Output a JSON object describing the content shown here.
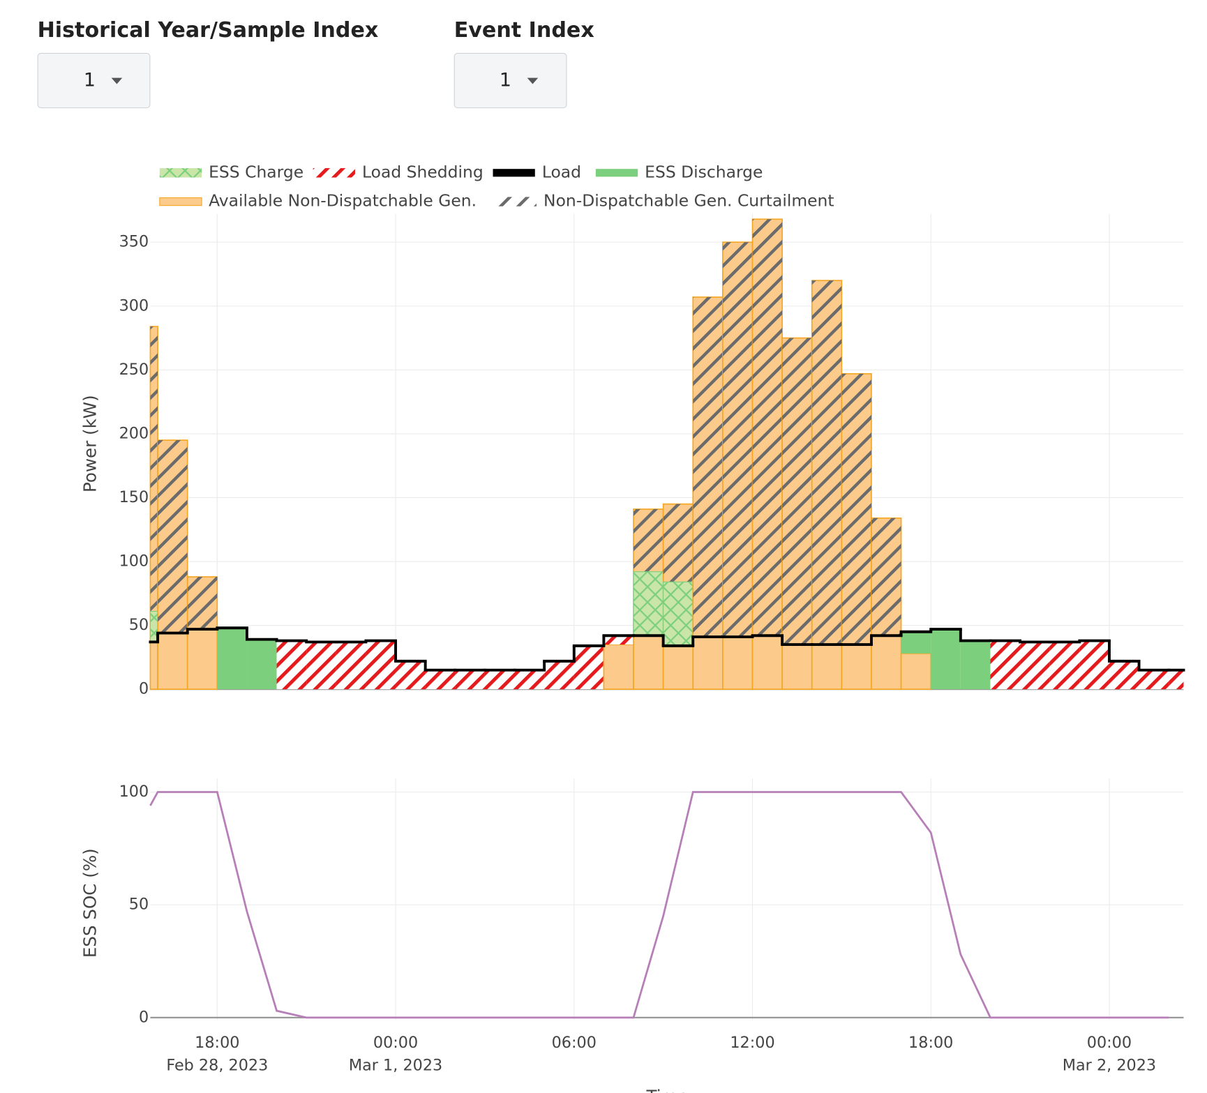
{
  "controls": [
    {
      "label": "Historical Year/Sample Index",
      "value": "1"
    },
    {
      "label": "Event Index",
      "value": "1"
    }
  ],
  "chart_data": [
    {
      "type": "area",
      "ylabel": "Power (kW)",
      "x": [
        "2023-02-28 15:45",
        "2023-02-28 16:00",
        "2023-02-28 17:00",
        "2023-02-28 18:00",
        "2023-02-28 19:00",
        "2023-02-28 20:00",
        "2023-02-28 21:00",
        "2023-02-28 22:00",
        "2023-02-28 23:00",
        "2023-03-01 00:00",
        "2023-03-01 01:00",
        "2023-03-01 02:00",
        "2023-03-01 03:00",
        "2023-03-01 04:00",
        "2023-03-01 05:00",
        "2023-03-01 06:00",
        "2023-03-01 07:00",
        "2023-03-01 08:00",
        "2023-03-01 09:00",
        "2023-03-01 10:00",
        "2023-03-01 11:00",
        "2023-03-01 12:00",
        "2023-03-01 13:00",
        "2023-03-01 14:00",
        "2023-03-01 15:00",
        "2023-03-01 16:00",
        "2023-03-01 17:00",
        "2023-03-01 18:00",
        "2023-03-01 19:00",
        "2023-03-01 20:00",
        "2023-03-01 21:00",
        "2023-03-01 22:00",
        "2023-03-01 23:00",
        "2023-03-02 00:00",
        "2023-03-02 01:00",
        "2023-03-02 02:00"
      ],
      "xlim": [
        "2023-02-28 15:45",
        "2023-03-02 02:30"
      ],
      "xticks": [
        {
          "value": "2023-02-28 18:00"
        },
        {
          "value": "2023-03-01 00:00"
        },
        {
          "value": "2023-03-01 06:00"
        },
        {
          "value": "2023-03-01 12:00"
        },
        {
          "value": "2023-03-01 18:00"
        },
        {
          "value": "2023-03-02 00:00"
        }
      ],
      "ylim": [
        -1,
        372
      ],
      "yticks": [
        0,
        50,
        100,
        150,
        200,
        250,
        300,
        350
      ],
      "grid": true,
      "series": [
        {
          "name": "ESS Charge",
          "color": "#7ccf7c",
          "pattern": "cross",
          "values": [
            24,
            0,
            0,
            0,
            0,
            0,
            0,
            0,
            0,
            0,
            0,
            0,
            0,
            0,
            0,
            0,
            0,
            50,
            50,
            0,
            0,
            0,
            0,
            0,
            0,
            0,
            0,
            0,
            0,
            0,
            0,
            0,
            0,
            0,
            0,
            0
          ]
        },
        {
          "name": "Load Shedding",
          "color": "#e41a1c",
          "pattern": "stripe",
          "values": [
            0,
            0,
            0,
            0,
            0,
            38,
            37,
            37,
            38,
            22,
            15,
            15,
            15,
            15,
            22,
            34,
            7,
            0,
            0,
            0,
            0,
            0,
            0,
            0,
            0,
            0,
            0,
            0,
            0,
            38,
            37,
            37,
            38,
            22,
            15,
            15
          ]
        },
        {
          "name": "Load",
          "color": "#000000",
          "values": [
            37,
            44,
            47,
            48,
            39,
            38,
            37,
            37,
            38,
            22,
            15,
            15,
            15,
            15,
            22,
            34,
            42,
            42,
            34,
            41,
            41,
            42,
            35,
            35,
            35,
            42,
            45,
            47,
            38,
            38,
            37,
            37,
            38,
            22,
            15,
            15
          ]
        },
        {
          "name": "ESS Discharge",
          "color": "#7ccf7c",
          "values": [
            0,
            0,
            0,
            48,
            39,
            0,
            0,
            0,
            0,
            0,
            0,
            0,
            0,
            0,
            0,
            0,
            0,
            0,
            0,
            0,
            0,
            0,
            0,
            0,
            0,
            0,
            17,
            47,
            38,
            0,
            0,
            0,
            0,
            0,
            0,
            0
          ]
        },
        {
          "name": "Available Non-Dispatchable Gen.",
          "color": "#fccb8b",
          "values": [
            284,
            195,
            88,
            0,
            0,
            0,
            0,
            0,
            0,
            0,
            0,
            0,
            0,
            0,
            0,
            0,
            35,
            141,
            145,
            307,
            350,
            368,
            275,
            320,
            247,
            134,
            28,
            0,
            0,
            0,
            0,
            0,
            0,
            0,
            0,
            0
          ]
        },
        {
          "name": "Non-Dispatchable Gen. Curtailment",
          "color": "#6b6b6b",
          "pattern": "stripe",
          "values": [
            223,
            151,
            41,
            0,
            0,
            0,
            0,
            0,
            0,
            0,
            0,
            0,
            0,
            0,
            0,
            0,
            0,
            49,
            61,
            266,
            309,
            326,
            240,
            285,
            212,
            92,
            0,
            0,
            0,
            0,
            0,
            0,
            0,
            0,
            0,
            0
          ]
        }
      ]
    },
    {
      "type": "line",
      "ylabel": "ESS SOC (%)",
      "xlabel": "Time",
      "x": [
        "2023-02-28 15:45",
        "2023-02-28 16:00",
        "2023-02-28 17:00",
        "2023-02-28 18:00",
        "2023-02-28 19:00",
        "2023-02-28 20:00",
        "2023-02-28 21:00",
        "2023-02-28 22:00",
        "2023-02-28 23:00",
        "2023-03-01 00:00",
        "2023-03-01 01:00",
        "2023-03-01 02:00",
        "2023-03-01 03:00",
        "2023-03-01 04:00",
        "2023-03-01 05:00",
        "2023-03-01 06:00",
        "2023-03-01 07:00",
        "2023-03-01 08:00",
        "2023-03-01 09:00",
        "2023-03-01 10:00",
        "2023-03-01 11:00",
        "2023-03-01 12:00",
        "2023-03-01 13:00",
        "2023-03-01 14:00",
        "2023-03-01 15:00",
        "2023-03-01 16:00",
        "2023-03-01 17:00",
        "2023-03-01 18:00",
        "2023-03-01 19:00",
        "2023-03-01 20:00",
        "2023-03-01 21:00",
        "2023-03-01 22:00",
        "2023-03-01 23:00",
        "2023-03-02 00:00",
        "2023-03-02 01:00",
        "2023-03-02 02:00"
      ],
      "xlim": [
        "2023-02-28 15:45",
        "2023-03-02 02:30"
      ],
      "xticks": [
        {
          "value": "2023-02-28 18:00",
          "label": "18:00",
          "date": "Feb 28, 2023"
        },
        {
          "value": "2023-03-01 00:00",
          "label": "00:00",
          "date": "Mar 1, 2023"
        },
        {
          "value": "2023-03-01 06:00",
          "label": "06:00"
        },
        {
          "value": "2023-03-01 12:00",
          "label": "12:00"
        },
        {
          "value": "2023-03-01 18:00",
          "label": "18:00"
        },
        {
          "value": "2023-03-02 00:00",
          "label": "00:00",
          "date": "Mar 2, 2023"
        }
      ],
      "ylim": [
        -1,
        106
      ],
      "yticks": [
        0,
        50,
        100
      ],
      "grid": true,
      "series": [
        {
          "color": "#b77fb7",
          "values": [
            94,
            100,
            100,
            100,
            47,
            3,
            0,
            0,
            0,
            0,
            0,
            0,
            0,
            0,
            0,
            0,
            0,
            0,
            45,
            100,
            100,
            100,
            100,
            100,
            100,
            100,
            100,
            82,
            28,
            0,
            0,
            0,
            0,
            0,
            0,
            0
          ]
        }
      ]
    }
  ]
}
